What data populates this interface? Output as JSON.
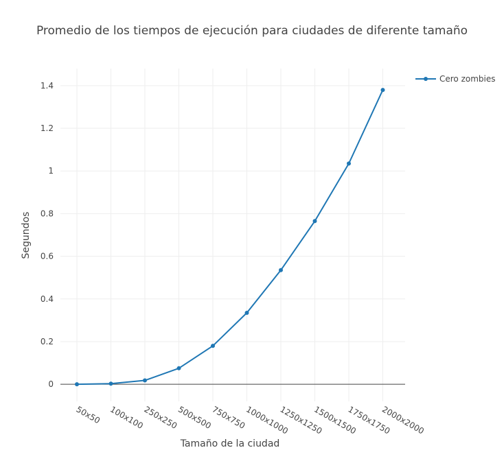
{
  "chart_data": {
    "type": "line",
    "title": "Promedio de los tiempos de ejecución para ciudades de diferente tamaño",
    "xlabel": "Tamaño de la ciudad",
    "ylabel": "Segundos",
    "categories": [
      "50x50",
      "100x100",
      "250x250",
      "500x500",
      "750x750",
      "1000x1000",
      "1250x1250",
      "1500x1500",
      "1750x1750",
      "2000x2000"
    ],
    "series": [
      {
        "name": "Cero zombies",
        "values": [
          0.0,
          0.003,
          0.018,
          0.075,
          0.18,
          0.335,
          0.535,
          0.765,
          1.035,
          1.38
        ],
        "color": "#1f77b4"
      }
    ],
    "ylim": [
      -0.08,
      1.48
    ],
    "yticks": [
      0,
      0.2,
      0.4,
      0.6,
      0.8,
      1,
      1.2,
      1.4
    ],
    "ytick_labels": [
      "0",
      "0.2",
      "0.4",
      "0.6",
      "0.8",
      "1",
      "1.2",
      "1.4"
    ],
    "grid": true,
    "legend_position": "top-right"
  }
}
